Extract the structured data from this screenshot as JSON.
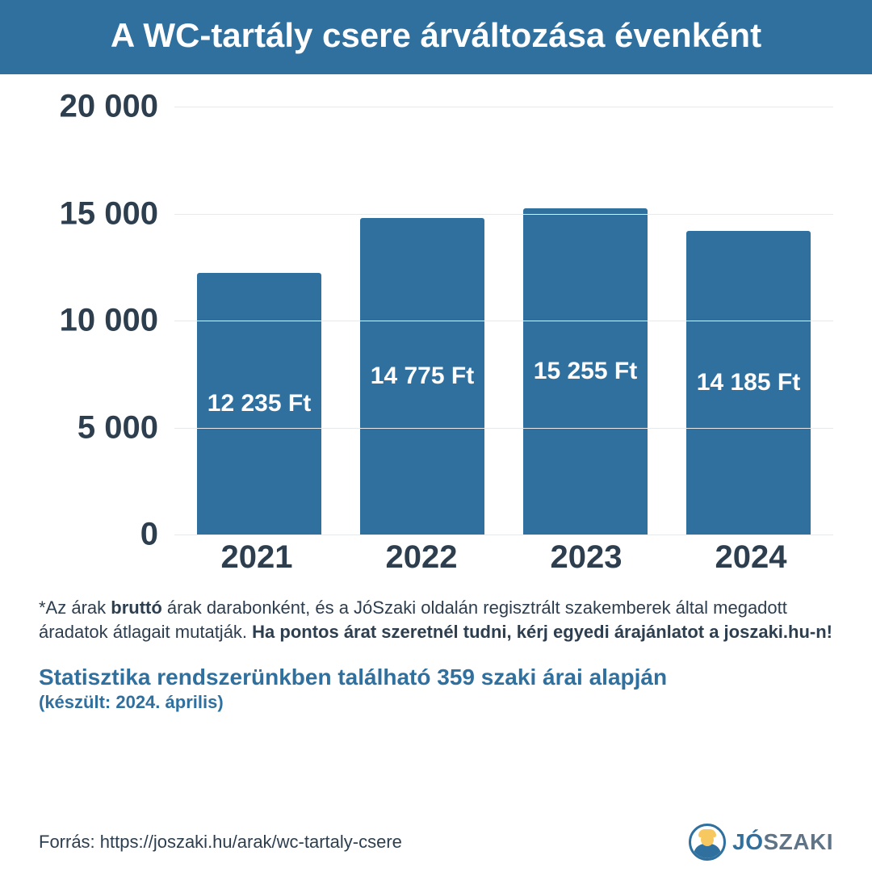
{
  "header": {
    "title": "A WC-tartály csere árváltozása évenként"
  },
  "chart": {
    "type": "bar",
    "ylim": [
      0,
      20000
    ],
    "ytick_step": 5000,
    "yticks": [
      {
        "value": 0,
        "label": "0"
      },
      {
        "value": 5000,
        "label": "5 000"
      },
      {
        "value": 10000,
        "label": "10 000"
      },
      {
        "value": 15000,
        "label": "15 000"
      },
      {
        "value": 20000,
        "label": "20 000"
      }
    ],
    "grid_color": "#e8e9ea",
    "bar_color": "#2f709f",
    "bar_label_color": "#ffffff",
    "bar_width_ratio": 0.76,
    "label_fontsize": 30,
    "axis_fontsize": 40,
    "background_color": "#ffffff",
    "bars": [
      {
        "category": "2021",
        "value": 12235,
        "label": "12 235 Ft"
      },
      {
        "category": "2022",
        "value": 14775,
        "label": "14 775 Ft"
      },
      {
        "category": "2023",
        "value": 15255,
        "label": "15 255 Ft"
      },
      {
        "category": "2024",
        "value": 14185,
        "label": "14 185 Ft"
      }
    ]
  },
  "footnote": {
    "pre": "*Az árak ",
    "bold1": "bruttó",
    "mid": " árak darabonként, és a JóSzaki oldalán regisztrált szakemberek által megadott áradatok átlagait mutatják. ",
    "bold2": "Ha pontos árat szeretnél tudni, kérj egyedi árajánlatot a joszaki.hu-n!"
  },
  "stats": {
    "line": "Statisztika rendszerünkben található 359 szaki árai alapján",
    "sub": "(készült: 2024. április)"
  },
  "source": {
    "label": "Forrás: https://joszaki.hu/arak/wc-tartaly-csere"
  },
  "logo": {
    "jo": "JÓ",
    "szaki": "SZAKI"
  },
  "colors": {
    "brand": "#2f709f",
    "text": "#2d3e4f",
    "muted": "#5f7587",
    "accent_yellow": "#f6c85f"
  }
}
